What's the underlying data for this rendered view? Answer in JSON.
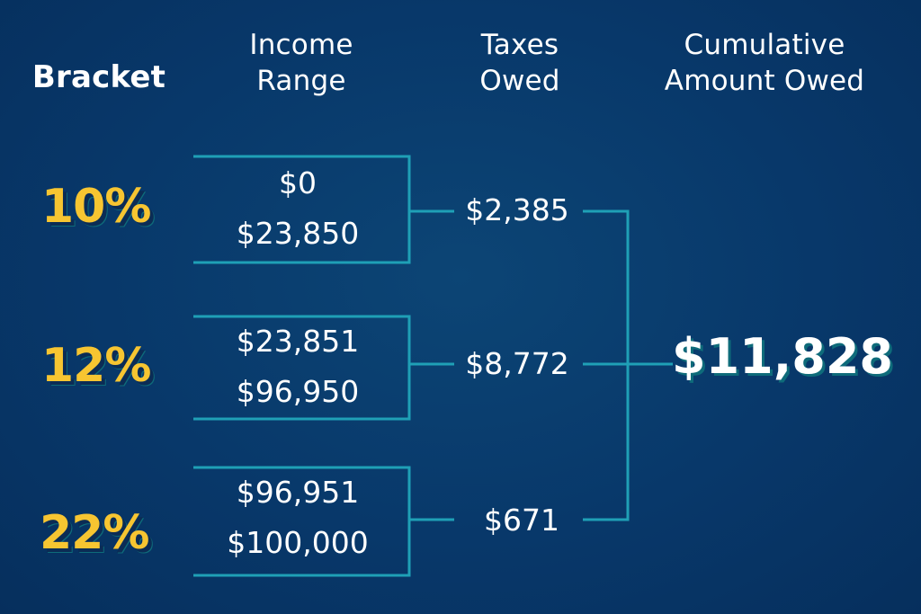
{
  "headers": {
    "bracket": "Bracket",
    "income_range": [
      "Income",
      "Range"
    ],
    "taxes_owed": [
      "Taxes",
      "Owed"
    ],
    "cumulative": [
      "Cumulative",
      "Amount Owed"
    ]
  },
  "brackets": [
    {
      "rate": "10%",
      "range_low": "$0",
      "range_high": "$23,850",
      "tax": "$2,385"
    },
    {
      "rate": "12%",
      "range_low": "$23,851",
      "range_high": "$96,950",
      "tax": "$8,772"
    },
    {
      "rate": "22%",
      "range_low": "$96,951",
      "range_high": "$100,000",
      "tax": "$671"
    }
  ],
  "total": "$11,828",
  "colors": {
    "background": "#08386a",
    "rate_yellow": "#f7c531",
    "line_teal": "#1fa0b6",
    "text": "#ffffff"
  }
}
